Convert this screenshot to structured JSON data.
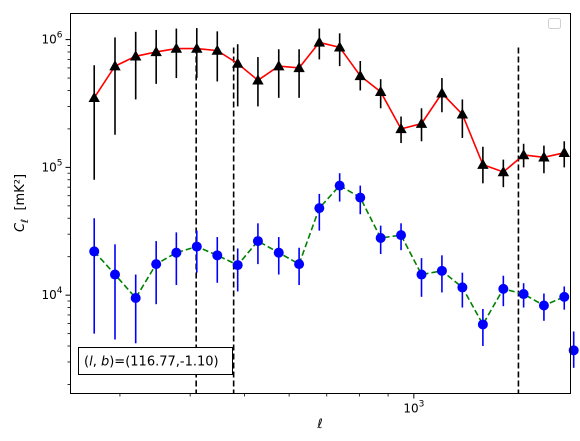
{
  "chart_data": {
    "type": "line",
    "xlabel": "ℓ",
    "ylabel": "C_ℓ [mK²]",
    "xscale": "log",
    "yscale": "log",
    "xlim": [
      245,
      1900
    ],
    "ylim": [
      1700,
      1600000
    ],
    "x_ticks": [
      {
        "value": 1000,
        "label": "10^3"
      }
    ],
    "y_ticks": [
      {
        "value": 10000,
        "label": "10^4"
      },
      {
        "value": 100000,
        "label": "10^5"
      },
      {
        "value": 1000000,
        "label": "10^6"
      }
    ],
    "legend": {
      "position": "top-right",
      "entries": []
    },
    "annotation": "(l, b)=(116.77,-1.10)",
    "vlines": [
      410,
      478,
      1535
    ],
    "series": [
      {
        "color": "#ff0000",
        "linestyle": "solid",
        "marker": "triangle",
        "marker_color": "#000000",
        "errorbar_color": "#000000",
        "x": [
          270,
          294,
          320,
          348,
          378,
          411,
          447,
          486,
          528,
          575,
          625,
          679,
          738,
          803,
          873,
          949,
          1032,
          1122,
          1220,
          1327,
          1443,
          1568,
          1704,
          1852
        ],
        "y": [
          350000,
          620000,
          740000,
          800000,
          850000,
          850000,
          820000,
          650000,
          480000,
          620000,
          600000,
          950000,
          870000,
          520000,
          390000,
          200000,
          220000,
          380000,
          260000,
          105000,
          92000,
          125000,
          120000,
          130000
        ],
        "err_low": [
          270000,
          440000,
          400000,
          350000,
          350000,
          350000,
          350000,
          350000,
          180000,
          270000,
          250000,
          250000,
          250000,
          120000,
          100000,
          45000,
          60000,
          110000,
          90000,
          30000,
          22000,
          25000,
          30000,
          30000
        ],
        "err_high": [
          280000,
          420000,
          410000,
          390000,
          370000,
          380000,
          340000,
          270000,
          250000,
          220000,
          240000,
          270000,
          250000,
          160000,
          100000,
          50000,
          70000,
          120000,
          80000,
          40000,
          23000,
          28000,
          28000,
          30000
        ]
      },
      {
        "color": "#008000",
        "linestyle": "dashed",
        "marker": "circle",
        "marker_color": "#0000ff",
        "errorbar_color": "#0000ff",
        "x": [
          270,
          294,
          320,
          348,
          378,
          411,
          447,
          486,
          528,
          575,
          625,
          679,
          738,
          803,
          873,
          949,
          1032,
          1122,
          1220,
          1327,
          1443,
          1568,
          1704,
          1852
        ],
        "y": [
          22000,
          14500,
          9500,
          17500,
          21500,
          24000,
          20500,
          17200,
          26500,
          21500,
          17500,
          48000,
          72000,
          58000,
          28000,
          29500,
          14500,
          15500,
          11500,
          5900,
          11200,
          10200,
          8300,
          9700
        ],
        "err_low": [
          17000,
          10000,
          5300,
          9000,
          9500,
          9000,
          8000,
          6500,
          9000,
          7000,
          5500,
          16000,
          18000,
          15000,
          7000,
          7000,
          4800,
          5000,
          3500,
          1900,
          3000,
          2200,
          2000,
          2000
        ],
        "err_high": [
          18000,
          10500,
          5000,
          9000,
          9500,
          8000,
          8000,
          6000,
          10000,
          7000,
          6000,
          14000,
          18000,
          14000,
          7000,
          7000,
          5000,
          5000,
          3500,
          1900,
          3000,
          2200,
          2000,
          2000
        ]
      },
      {
        "color": "#0000ff",
        "linestyle": "none",
        "marker": "circle",
        "marker_color": "#0000ff",
        "errorbar_color": "#0000ff",
        "x": [
          1925
        ],
        "y": [
          3700
        ],
        "err_low": [
          1000
        ],
        "err_high": [
          1500
        ]
      }
    ]
  }
}
